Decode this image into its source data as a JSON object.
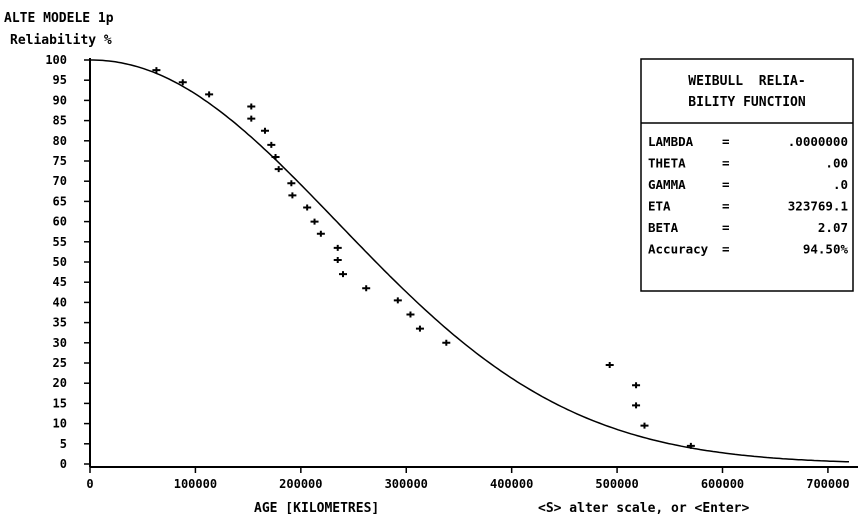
{
  "header": {
    "title": "ALTE MODELE 1p",
    "ylabel": "Reliability %"
  },
  "footer": {
    "xlabel": "AGE [KILOMETRES]",
    "prompt": "<S> alter scale, or <Enter>"
  },
  "params_box": {
    "title_line1": "WEIBULL  RELIA-",
    "title_line2": "BILITY FUNCTION",
    "rows": [
      {
        "name": "LAMBDA",
        "sep": "=",
        "value": ".0000000"
      },
      {
        "name": "THETA",
        "sep": "=",
        "value": ".00"
      },
      {
        "name": "GAMMA",
        "sep": "=",
        "value": ".0"
      },
      {
        "name": "ETA",
        "sep": "=",
        "value": "323769.1"
      },
      {
        "name": "BETA",
        "sep": "=",
        "value": "2.07"
      },
      {
        "name": "Accuracy",
        "sep": "=",
        "value": "94.50%"
      }
    ]
  },
  "chart_data": {
    "type": "scatter",
    "title": "ALTE MODELE 1p",
    "xlabel": "AGE [KILOMETRES]",
    "ylabel": "Reliability %",
    "xlim": [
      0,
      720000
    ],
    "ylim": [
      0,
      100
    ],
    "x_ticks": [
      0,
      100000,
      200000,
      300000,
      400000,
      500000,
      600000,
      700000
    ],
    "x_tick_labels": [
      "0",
      "100000",
      "200000",
      "300000",
      "400000",
      "500000",
      "600000",
      "700000"
    ],
    "y_ticks": [
      0,
      5,
      10,
      15,
      20,
      25,
      30,
      35,
      40,
      45,
      50,
      55,
      60,
      65,
      70,
      75,
      80,
      85,
      90,
      95,
      100
    ],
    "y_tick_labels": [
      "0",
      "5",
      "10",
      "15",
      "20",
      "25",
      "30",
      "35",
      "40",
      "45",
      "50",
      "55",
      "60",
      "65",
      "70",
      "75",
      "80",
      "85",
      "90",
      "95",
      "100"
    ],
    "curve": {
      "model": "weibull",
      "eta": 323769.1,
      "beta": 2.07,
      "gamma": 0
    },
    "points": [
      {
        "x": 63000,
        "y": 97.5
      },
      {
        "x": 88000,
        "y": 94.5
      },
      {
        "x": 113000,
        "y": 91.5
      },
      {
        "x": 153000,
        "y": 88.5
      },
      {
        "x": 153000,
        "y": 85.5
      },
      {
        "x": 166000,
        "y": 82.5
      },
      {
        "x": 172000,
        "y": 79.0
      },
      {
        "x": 176000,
        "y": 76.0
      },
      {
        "x": 179000,
        "y": 73.0
      },
      {
        "x": 191000,
        "y": 69.5
      },
      {
        "x": 192000,
        "y": 66.5
      },
      {
        "x": 206000,
        "y": 63.5
      },
      {
        "x": 213000,
        "y": 60.0
      },
      {
        "x": 219000,
        "y": 57.0
      },
      {
        "x": 235000,
        "y": 53.5
      },
      {
        "x": 235000,
        "y": 50.5
      },
      {
        "x": 240000,
        "y": 47.0
      },
      {
        "x": 262000,
        "y": 43.5
      },
      {
        "x": 292000,
        "y": 40.5
      },
      {
        "x": 304000,
        "y": 37.0
      },
      {
        "x": 313000,
        "y": 33.5
      },
      {
        "x": 338000,
        "y": 30.0
      },
      {
        "x": 493000,
        "y": 24.5
      },
      {
        "x": 518000,
        "y": 19.5
      },
      {
        "x": 518000,
        "y": 14.5
      },
      {
        "x": 526000,
        "y": 9.5
      },
      {
        "x": 570000,
        "y": 4.5
      }
    ]
  }
}
